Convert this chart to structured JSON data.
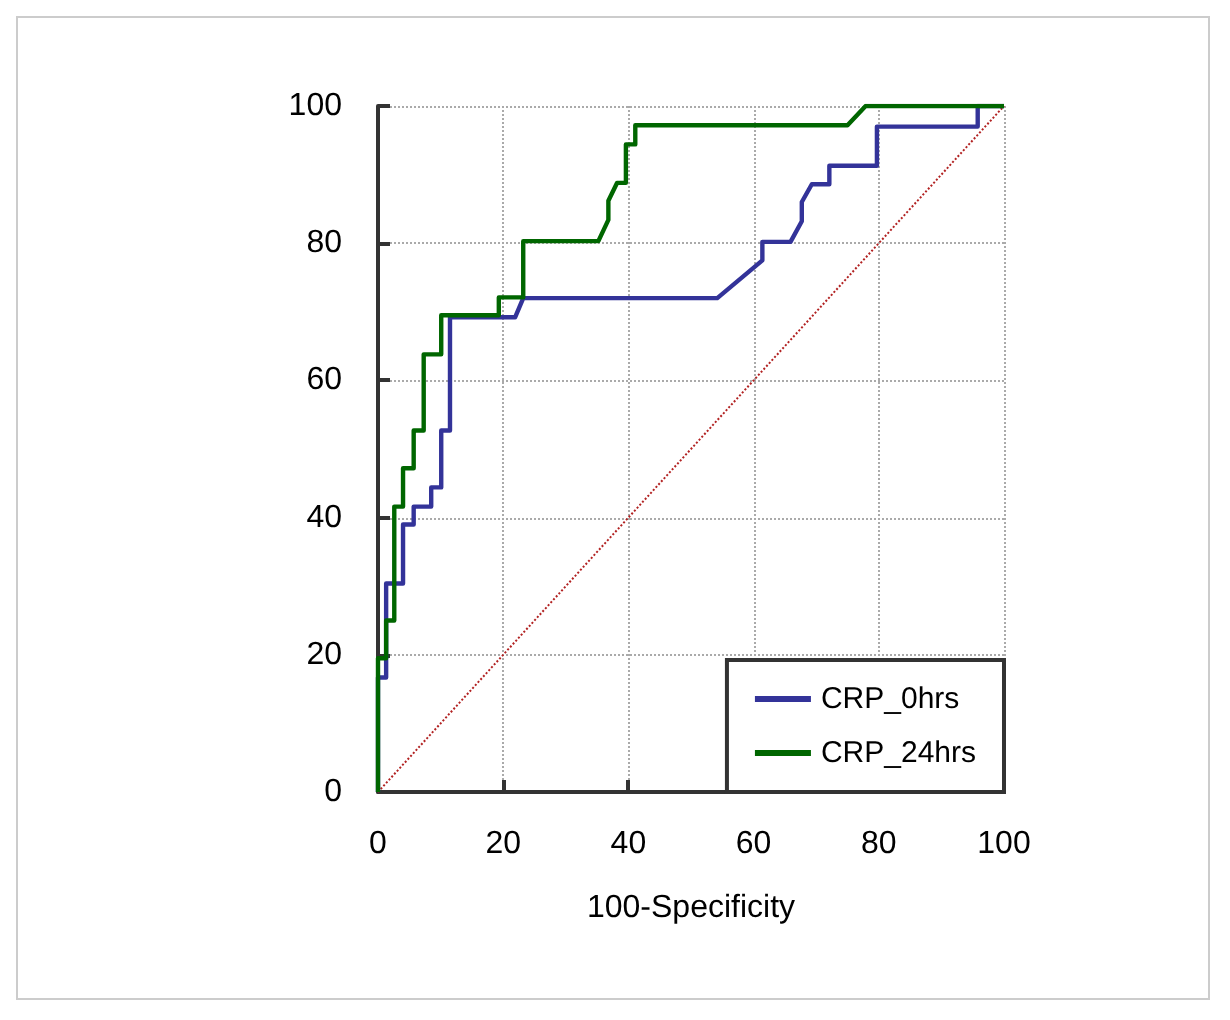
{
  "chart_data": {
    "type": "line",
    "xlabel": "100-Specificity",
    "xlim": [
      0,
      100
    ],
    "ylim": [
      0,
      100
    ],
    "xticks": [
      0,
      20,
      40,
      60,
      80,
      100
    ],
    "yticks": [
      0,
      20,
      40,
      60,
      80,
      100
    ],
    "grid": true,
    "legend": "bottom right",
    "marker": "none",
    "line_style": "solid",
    "series": [
      {
        "name": "CRP_0hrs",
        "color": "#333399",
        "x": [
          0,
          0,
          1.3,
          1.3,
          4,
          4,
          5.7,
          5.7,
          8.5,
          8.5,
          10.1,
          10.1,
          11.5,
          11.5,
          21.9,
          23.2,
          54.2,
          61.4,
          61.4,
          65.9,
          67.7,
          67.7,
          69.3,
          72.1,
          72.1,
          79.7,
          79.7,
          95.8,
          95.8,
          100
        ],
        "values": [
          0,
          16.7,
          16.7,
          30.4,
          30.4,
          39,
          39,
          41.6,
          41.6,
          44.4,
          44.4,
          52.7,
          52.7,
          69.2,
          69.2,
          72,
          72,
          77.5,
          80.2,
          80.2,
          83.2,
          86,
          88.6,
          88.6,
          91.3,
          91.3,
          97,
          97,
          100,
          100
        ]
      },
      {
        "name": "CRP_24hrs",
        "color": "#006600",
        "x": [
          0,
          0,
          1.3,
          1.3,
          2.6,
          2.6,
          4,
          4,
          5.7,
          5.7,
          7.3,
          7.3,
          10.1,
          10.1,
          19.3,
          19.3,
          23.2,
          23.2,
          35.2,
          36.8,
          36.8,
          38.2,
          39.6,
          39.6,
          41.1,
          41.1,
          75,
          77.9,
          100
        ],
        "values": [
          0,
          19.5,
          19.5,
          25,
          25,
          41.6,
          41.6,
          47.2,
          47.2,
          52.7,
          52.7,
          63.8,
          63.8,
          69.5,
          69.5,
          72.1,
          72.1,
          80.3,
          80.3,
          83.4,
          86.2,
          88.8,
          88.8,
          94.4,
          94.4,
          97.2,
          97.2,
          100,
          100
        ]
      },
      {
        "color": "#b22222",
        "line_style": "dotted",
        "x": [
          0,
          100
        ],
        "values": [
          0,
          100
        ]
      }
    ]
  }
}
